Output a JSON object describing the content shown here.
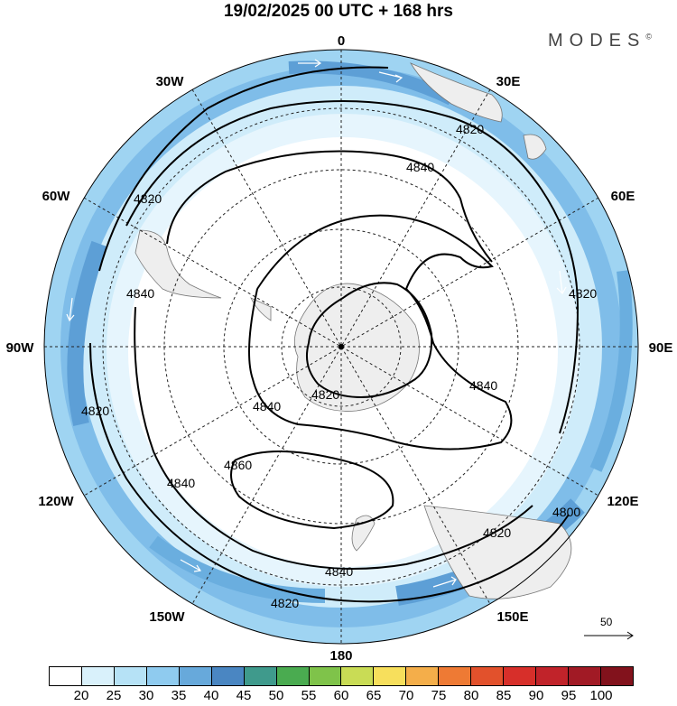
{
  "title": "19/02/2025  00 UTC  + 168 hrs",
  "brand": "MODES",
  "brand_mark": "©",
  "longitude_labels": {
    "top": "0",
    "bottom": "180",
    "left": "90W",
    "right": "90E",
    "upper_left": "30W",
    "upper_right": "30E",
    "left_upper": "60W",
    "right_upper": "60E",
    "lower_left": "120W",
    "lower_right": "120E",
    "bottom_left": "150W",
    "bottom_right": "150E"
  },
  "contour_labels": [
    "4820",
    "4820",
    "4820",
    "4820",
    "4820",
    "4820",
    "4840",
    "4840",
    "4840",
    "4840",
    "4840",
    "4840",
    "4860",
    "4800"
  ],
  "reference_vector": "50",
  "colorbar": {
    "labels": [
      "20",
      "25",
      "30",
      "35",
      "40",
      "45",
      "50",
      "55",
      "60",
      "65",
      "70",
      "75",
      "80",
      "85",
      "90",
      "95",
      "100"
    ],
    "colors": [
      "#ffffff",
      "#d9f1fb",
      "#b6e2f6",
      "#8fcbef",
      "#67a9db",
      "#4a86c2",
      "#3f9a8c",
      "#4aab50",
      "#7fc34a",
      "#c9dc55",
      "#f7df5c",
      "#f4ae4a",
      "#ee7a34",
      "#e2512c",
      "#d72f2a",
      "#c1232a",
      "#a11a25",
      "#82121c"
    ]
  }
}
